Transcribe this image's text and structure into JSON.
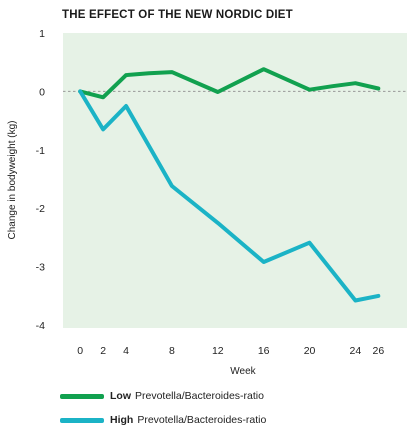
{
  "chart_data": {
    "type": "line",
    "title": "THE EFFECT OF THE NEW NORDIC DIET",
    "xlabel": "Week",
    "ylabel": "Change in bodyweight (kg)",
    "x_ticks": [
      0,
      2,
      4,
      8,
      12,
      16,
      20,
      24,
      26
    ],
    "y_ticks": [
      1,
      0,
      -1,
      -2,
      -3,
      -4
    ],
    "xlim": [
      -1.5,
      28.5
    ],
    "ylim": [
      -4.05,
      1.0
    ],
    "grid": false,
    "plot_background": "#e6f2e6",
    "zero_line_color": "#999999",
    "legend_position": "bottom-left",
    "series": [
      {
        "name": "Low Prevotella/Bacteroides-ratio",
        "legend_bold": "Low",
        "legend_rest": "Prevotella/Bacteroides-ratio",
        "color": "#11a14f",
        "x": [
          0,
          2,
          4,
          6,
          8,
          12,
          16,
          20,
          22,
          24,
          26
        ],
        "y": [
          0.0,
          -0.1,
          0.28,
          0.31,
          0.33,
          -0.01,
          0.38,
          0.03,
          0.09,
          0.14,
          0.05
        ]
      },
      {
        "name": "High Prevotella/Bacteroides-ratio",
        "legend_bold": "High",
        "legend_rest": "Prevotella/Bacteroides-ratio",
        "color": "#1bb3c6",
        "x": [
          0,
          2,
          4,
          8,
          12,
          16,
          20,
          24,
          26
        ],
        "y": [
          0.0,
          -0.65,
          -0.25,
          -1.62,
          -2.25,
          -2.92,
          -2.59,
          -3.58,
          -3.5
        ]
      }
    ]
  }
}
